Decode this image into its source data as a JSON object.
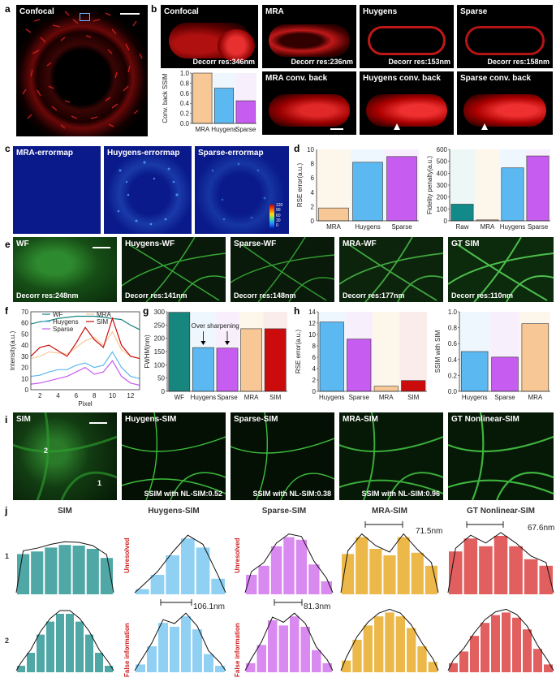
{
  "panel_letters": [
    "a",
    "b",
    "c",
    "d",
    "e",
    "f",
    "g",
    "h",
    "i",
    "j"
  ],
  "a": {
    "title": "Confocal"
  },
  "b": {
    "tiles": [
      {
        "title": "Confocal",
        "caption": "Decorr res:346nm"
      },
      {
        "title": "MRA",
        "caption": "Decorr res:236nm"
      },
      {
        "title": "Huygens",
        "caption": "Decorr res:153nm"
      },
      {
        "title": "Sparse",
        "caption": "Decorr res:158nm"
      },
      {
        "title": "MRA conv. back",
        "caption": ""
      },
      {
        "title": "Huygens conv. back",
        "caption": ""
      },
      {
        "title": "Sparse conv. back",
        "caption": ""
      }
    ]
  },
  "c": {
    "tiles": [
      "MRA-errormap",
      "Huygens-errormap",
      "Sparse-errormap"
    ],
    "colorbar_ticks": [
      "120",
      "90",
      "60",
      "30",
      "0"
    ]
  },
  "e": {
    "tiles": [
      {
        "title": "WF",
        "caption": "Decorr res:248nm"
      },
      {
        "title": "Huygens-WF",
        "caption": "Decorr res:141nm"
      },
      {
        "title": "Sparse-WF",
        "caption": "Decorr res:148nm"
      },
      {
        "title": "MRA-WF",
        "caption": "Decorr res:177nm"
      },
      {
        "title": "GT SIM",
        "caption": "Decorr res:110nm"
      }
    ]
  },
  "i": {
    "tiles": [
      {
        "title": "SIM",
        "caption": ""
      },
      {
        "title": "Huygens-SIM",
        "caption": "SSIM with NL-SIM:0.52"
      },
      {
        "title": "Sparse-SIM",
        "caption": "SSIM with NL-SIM:0.38"
      },
      {
        "title": "MRA-SIM",
        "caption": "SSIM with NL-SIM:0.96"
      },
      {
        "title": "GT Nonlinear-SIM",
        "caption": ""
      }
    ],
    "marker_labels": [
      "2",
      "1"
    ]
  },
  "j": {
    "titles": [
      "SIM",
      "Huygens-SIM",
      "Sparse-SIM",
      "MRA-SIM",
      "GT Nonlinear-SIM"
    ],
    "row_labels": [
      "1",
      "2"
    ],
    "side_notes": {
      "unresolved": "Unresolved",
      "false_info": "False information"
    },
    "measures": {
      "mra_1": "71.5nm",
      "gt_1": "67.6nm",
      "huy_2": "106.1nm",
      "sparse_2": "81.3nm"
    }
  },
  "colors": {
    "mra": "#f7c896",
    "huygens": "#5bb8f0",
    "sparse": "#c65cf0",
    "raw": "#138a8a",
    "sim": "#cc0c0c",
    "wf": "#17867f",
    "teal": "#4fa7a6",
    "lightblue": "#8fd0f3",
    "violet": "#d98af0",
    "gold": "#ecb84a",
    "salmon": "#e25f60"
  },
  "chart_data": [
    {
      "id": "b_ssim",
      "type": "bar",
      "categories": [
        "MRA",
        "Huygens",
        "Sparse"
      ],
      "values": [
        1.0,
        0.7,
        0.45
      ],
      "ylabel": "Conv. back SSIM",
      "ylim": [
        0,
        1.0
      ],
      "yticks": [
        "0.0",
        "0.2",
        "0.4",
        "0.6",
        "0.8",
        "1.0"
      ]
    },
    {
      "id": "d_rse",
      "type": "bar",
      "categories": [
        "MRA",
        "Huygens",
        "Sparse"
      ],
      "values": [
        1.8,
        8.2,
        9.0
      ],
      "ylabel": "RSE error(a.u.)",
      "ylim": [
        0,
        10
      ]
    },
    {
      "id": "d_fid",
      "type": "bar",
      "categories": [
        "Raw",
        "MRA",
        "Huygens",
        "Sparse"
      ],
      "values": [
        140,
        8,
        445,
        545
      ],
      "ylabel": "Fidelity penalty(a.u.)",
      "ylim": [
        0,
        600
      ],
      "yticks": [
        "0",
        "100",
        "200",
        "300",
        "400",
        "500",
        "600"
      ]
    },
    {
      "id": "f_profile",
      "type": "line",
      "x": [
        1,
        2,
        3,
        4,
        5,
        6,
        7,
        8,
        9,
        10,
        11,
        12,
        13
      ],
      "series": [
        {
          "name": "WF",
          "values": [
            59,
            61,
            62,
            64,
            65,
            66,
            66,
            66,
            65,
            64,
            63,
            58,
            54
          ]
        },
        {
          "name": "MRA",
          "values": [
            28,
            30,
            34,
            33,
            32,
            38,
            44,
            47,
            40,
            52,
            36,
            30,
            28
          ]
        },
        {
          "name": "Huygens",
          "values": [
            12,
            13,
            16,
            18,
            18,
            22,
            24,
            20,
            22,
            34,
            20,
            12,
            10
          ]
        },
        {
          "name": "SIM",
          "values": [
            30,
            38,
            40,
            35,
            30,
            42,
            56,
            45,
            38,
            64,
            40,
            30,
            28
          ]
        },
        {
          "name": "Sparse",
          "values": [
            5,
            6,
            8,
            10,
            12,
            16,
            20,
            14,
            16,
            26,
            12,
            6,
            4
          ]
        }
      ],
      "xlabel": "Pixel",
      "ylabel": "Intensity(a.u.)",
      "ylim": [
        0,
        70
      ],
      "yticks": [
        "0",
        "10",
        "20",
        "30",
        "40",
        "50",
        "60",
        "70"
      ],
      "xticks": [
        "2",
        "4",
        "6",
        "8",
        "10",
        "12"
      ]
    },
    {
      "id": "g_fwhm",
      "type": "bar",
      "categories": [
        "WF",
        "Huygens",
        "Sparse",
        "MRA",
        "SIM"
      ],
      "values": [
        298,
        165,
        163,
        236,
        236
      ],
      "ylabel": "FWHM(nm)",
      "ylim": [
        0,
        300
      ],
      "yticks": [
        "0",
        "50",
        "100",
        "150",
        "200",
        "250",
        "300"
      ],
      "annotation": "Over sharpening"
    },
    {
      "id": "h_rse",
      "type": "bar",
      "categories": [
        "Huygens",
        "Sparse",
        "MRA",
        "SIM"
      ],
      "values": [
        12.2,
        9.2,
        0.9,
        1.9
      ],
      "ylabel": "RSE error(a.u.)",
      "ylim": [
        0,
        14
      ],
      "yticks": [
        "0",
        "2",
        "4",
        "6",
        "8",
        "10",
        "12",
        "14"
      ]
    },
    {
      "id": "h_ssim",
      "type": "bar",
      "categories": [
        "Huygens",
        "Sparse",
        "MRA"
      ],
      "values": [
        0.5,
        0.43,
        0.85
      ],
      "ylabel": "SSIM with SIM",
      "ylim": [
        0,
        1.0
      ],
      "yticks": [
        "0.0",
        "0.2",
        "0.4",
        "0.6",
        "0.8",
        "1.0"
      ]
    },
    {
      "id": "j_hists",
      "type": "bar",
      "rows": [
        [
          [
            62,
            66,
            72,
            76,
            75,
            70,
            56
          ],
          [
            8,
            30,
            60,
            86,
            72,
            24
          ],
          [
            30,
            44,
            74,
            88,
            84,
            46,
            20
          ],
          [
            62,
            88,
            70,
            60,
            88,
            64,
            44
          ],
          [
            66,
            86,
            74,
            90,
            74,
            54,
            44
          ]
        ],
        [
          [
            10,
            30,
            58,
            78,
            90,
            90,
            78,
            58,
            30,
            10
          ],
          [
            12,
            40,
            76,
            70,
            86,
            66,
            28,
            10
          ],
          [
            14,
            42,
            80,
            72,
            86,
            70,
            34,
            14
          ],
          [
            18,
            50,
            72,
            86,
            92,
            86,
            68,
            40,
            16
          ],
          [
            14,
            32,
            56,
            76,
            88,
            92,
            84,
            66,
            36,
            12
          ]
        ]
      ]
    }
  ]
}
